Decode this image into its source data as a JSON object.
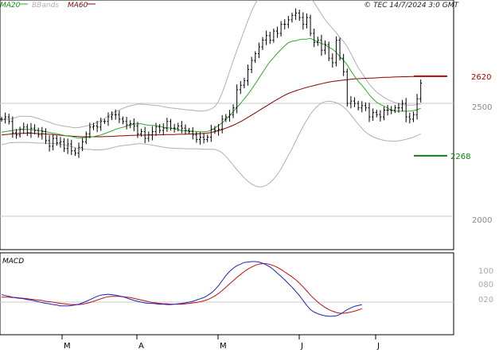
{
  "header": {
    "legend_ma20": "MA20",
    "legend_bbands": "BBands",
    "legend_ma60": "MA60",
    "copyright": "© TEC 14/7/2024 3:0 GMT"
  },
  "macd_panel": {
    "title": "MACD"
  },
  "colors": {
    "ma20": "#2eaa2e",
    "bbands": "#b0b0b0",
    "ma60": "#8b0000",
    "price_bar": "#000000",
    "macd_line": "#2020c0",
    "signal_line": "#c01010",
    "resistance": "#c00000",
    "support": "#108010",
    "grid": "#c8c8c8"
  },
  "chart_data": [
    {
      "type": "line",
      "panel": "price",
      "chart": "OHLC bars with Bollinger Bands, MA20, MA60",
      "y_tick_labels": [
        "2500",
        "2000"
      ],
      "ylim": [
        1650,
        3000
      ],
      "x_tick_labels": [
        "M",
        "A",
        "M",
        "J",
        "J"
      ],
      "x_tick_dates": [
        "2024-03",
        "2024-04",
        "2024-05",
        "2024-06",
        "2024-07"
      ],
      "annotations": [
        {
          "label": "2620",
          "value": 2620,
          "kind": "resistance",
          "color": "#c00000"
        },
        {
          "label": "2268",
          "value": 2268,
          "kind": "support",
          "color": "#108010"
        }
      ],
      "close": [
        2430,
        2440,
        2420,
        2370,
        2360,
        2385,
        2395,
        2370,
        2390,
        2380,
        2360,
        2375,
        2335,
        2310,
        2345,
        2325,
        2330,
        2300,
        2320,
        2290,
        2280,
        2305,
        2330,
        2365,
        2395,
        2400,
        2395,
        2420,
        2420,
        2440,
        2450,
        2450,
        2430,
        2420,
        2405,
        2410,
        2400,
        2365,
        2375,
        2345,
        2360,
        2375,
        2395,
        2380,
        2390,
        2420,
        2390,
        2390,
        2400,
        2390,
        2380,
        2375,
        2360,
        2340,
        2350,
        2340,
        2350,
        2385,
        2380,
        2385,
        2430,
        2440,
        2450,
        2480,
        2560,
        2580,
        2600,
        2650,
        2690,
        2720,
        2750,
        2780,
        2800,
        2780,
        2820,
        2810,
        2850,
        2850,
        2870,
        2890,
        2900,
        2880,
        2850,
        2880,
        2810,
        2770,
        2780,
        2735,
        2760,
        2700,
        2680,
        2780,
        2700,
        2640,
        2500,
        2510,
        2500,
        2480,
        2490,
        2480,
        2440,
        2460,
        2450,
        2440,
        2470,
        2470,
        2470,
        2480,
        2480,
        2500,
        2440,
        2430,
        2450,
        2520,
        2590
      ],
      "series": [
        {
          "name": "MA20",
          "values": [
            2372,
            2375,
            2377,
            2380,
            2382,
            2384,
            2385,
            2385,
            2384,
            2382,
            2380,
            2378,
            2375,
            2371,
            2368,
            2366,
            2362,
            2358,
            2355,
            2353,
            2349,
            2346,
            2348,
            2349,
            2350,
            2353,
            2356,
            2360,
            2366,
            2372,
            2378,
            2385,
            2390,
            2394,
            2399,
            2404,
            2408,
            2410,
            2409,
            2406,
            2403,
            2402,
            2401,
            2399,
            2394,
            2392,
            2390,
            2387,
            2383,
            2380,
            2378,
            2377,
            2377,
            2375,
            2374,
            2374,
            2376,
            2381,
            2391,
            2402,
            2414,
            2429,
            2445,
            2464,
            2482,
            2500,
            2520,
            2540,
            2563,
            2587,
            2612,
            2637,
            2662,
            2685,
            2703,
            2722,
            2739,
            2755,
            2769,
            2775,
            2777,
            2782,
            2784,
            2784,
            2788,
            2780,
            2772,
            2765,
            2760,
            2748,
            2740,
            2726,
            2707,
            2690,
            2670,
            2644,
            2620,
            2598,
            2580,
            2560,
            2538,
            2520,
            2505,
            2495,
            2488,
            2479,
            2470,
            2466,
            2465,
            2465,
            2465,
            2466,
            2468,
            2472,
            2478
          ]
        },
        {
          "name": "MA60",
          "values": [
            2360,
            2362,
            2363,
            2365,
            2366,
            2367,
            2367,
            2368,
            2368,
            2367,
            2366,
            2366,
            2364,
            2363,
            2362,
            2360,
            2359,
            2357,
            2356,
            2355,
            2354,
            2353,
            2352,
            2352,
            2352,
            2352,
            2352,
            2352,
            2353,
            2353,
            2354,
            2355,
            2356,
            2356,
            2357,
            2358,
            2358,
            2359,
            2359,
            2359,
            2360,
            2360,
            2360,
            2361,
            2361,
            2362,
            2362,
            2362,
            2363,
            2363,
            2363,
            2364,
            2365,
            2365,
            2366,
            2367,
            2368,
            2371,
            2375,
            2379,
            2384,
            2390,
            2396,
            2403,
            2411,
            2419,
            2428,
            2438,
            2448,
            2458,
            2468,
            2478,
            2488,
            2498,
            2508,
            2518,
            2527,
            2536,
            2544,
            2550,
            2556,
            2561,
            2566,
            2571,
            2575,
            2579,
            2583,
            2587,
            2591,
            2594,
            2597,
            2599,
            2601,
            2603,
            2605,
            2607,
            2608,
            2609,
            2610,
            2611,
            2612,
            2612,
            2613,
            2614,
            2615,
            2615,
            2616,
            2617,
            2617,
            2618,
            2618,
            2619,
            2619,
            2620,
            2620
          ]
        },
        {
          "name": "BBands upper",
          "values": [
            2426,
            2431,
            2429,
            2433,
            2438,
            2443,
            2443,
            2443,
            2442,
            2438,
            2433,
            2427,
            2422,
            2417,
            2410,
            2406,
            2402,
            2399,
            2397,
            2394,
            2392,
            2393,
            2396,
            2400,
            2403,
            2410,
            2416,
            2424,
            2433,
            2444,
            2455,
            2464,
            2470,
            2478,
            2484,
            2489,
            2493,
            2496,
            2497,
            2495,
            2494,
            2492,
            2491,
            2489,
            2485,
            2482,
            2480,
            2478,
            2476,
            2474,
            2472,
            2471,
            2469,
            2467,
            2466,
            2467,
            2469,
            2475,
            2485,
            2510,
            2547,
            2592,
            2641,
            2689,
            2735,
            2778,
            2823,
            2866,
            2908,
            2942,
            2967,
            2986,
            2997,
            3002,
            3003,
            3003,
            3004,
            3004,
            3004,
            3003,
            2999,
            2994,
            2987,
            2978,
            2966,
            2946,
            2921,
            2895,
            2870,
            2850,
            2833,
            2813,
            2792,
            2774,
            2751,
            2720,
            2689,
            2658,
            2634,
            2609,
            2585,
            2567,
            2550,
            2538,
            2527,
            2517,
            2510,
            2503,
            2498,
            2495,
            2493,
            2492,
            2492,
            2495,
            2498
          ]
        },
        {
          "name": "BBands lower",
          "values": [
            2317,
            2320,
            2325,
            2326,
            2327,
            2327,
            2327,
            2327,
            2326,
            2325,
            2324,
            2324,
            2323,
            2323,
            2322,
            2321,
            2319,
            2316,
            2313,
            2309,
            2304,
            2300,
            2298,
            2297,
            2296,
            2294,
            2294,
            2294,
            2296,
            2299,
            2303,
            2307,
            2311,
            2313,
            2315,
            2317,
            2319,
            2321,
            2321,
            2320,
            2318,
            2315,
            2312,
            2309,
            2306,
            2304,
            2302,
            2301,
            2300,
            2300,
            2299,
            2299,
            2299,
            2299,
            2298,
            2297,
            2297,
            2297,
            2296,
            2291,
            2281,
            2265,
            2246,
            2226,
            2206,
            2188,
            2170,
            2155,
            2143,
            2134,
            2130,
            2131,
            2137,
            2149,
            2165,
            2185,
            2210,
            2239,
            2270,
            2300,
            2333,
            2366,
            2398,
            2426,
            2452,
            2473,
            2489,
            2501,
            2508,
            2510,
            2508,
            2503,
            2495,
            2484,
            2469,
            2449,
            2428,
            2408,
            2389,
            2373,
            2361,
            2352,
            2345,
            2340,
            2336,
            2334,
            2333,
            2332,
            2334,
            2337,
            2341,
            2345,
            2350,
            2357,
            2365
          ]
        }
      ]
    },
    {
      "type": "line",
      "panel": "macd",
      "title": "MACD",
      "y_tick_labels": [
        "100",
        "080",
        "020"
      ],
      "series": [
        {
          "name": "MACD",
          "values": [
            18,
            16,
            14,
            12,
            10,
            9,
            8,
            6,
            5,
            3,
            1,
            -1,
            -3,
            -4,
            -6,
            -7,
            -9,
            -9,
            -9,
            -8,
            -7,
            -5,
            -2,
            2,
            6,
            10,
            14,
            17,
            18,
            19,
            18,
            17,
            15,
            13,
            10,
            7,
            4,
            2,
            0,
            -2,
            -3,
            -3,
            -4,
            -5,
            -5,
            -6,
            -6,
            -5,
            -4,
            -3,
            -2,
            0,
            2,
            5,
            8,
            11,
            16,
            22,
            30,
            40,
            52,
            64,
            74,
            82,
            88,
            92,
            96,
            97,
            98,
            98,
            97,
            94,
            90,
            85,
            78,
            70,
            62,
            54,
            45,
            36,
            26,
            16,
            4,
            -8,
            -18,
            -24,
            -28,
            -31,
            -33,
            -34,
            -34,
            -33,
            -30,
            -24,
            -18,
            -14,
            -10,
            -8,
            -6
          ]
        },
        {
          "name": "Signal",
          "values": [
            12,
            12,
            12,
            11,
            11,
            10,
            9,
            8,
            7,
            6,
            5,
            4,
            2,
            1,
            0,
            -2,
            -3,
            -4,
            -5,
            -6,
            -6,
            -6,
            -5,
            -3,
            -1,
            2,
            5,
            8,
            11,
            13,
            14,
            14,
            14,
            13,
            12,
            11,
            9,
            7,
            5,
            3,
            1,
            -1,
            -2,
            -3,
            -4,
            -4,
            -5,
            -5,
            -5,
            -5,
            -4,
            -3,
            -2,
            -1,
            1,
            3,
            6,
            10,
            15,
            21,
            28,
            36,
            44,
            52,
            60,
            67,
            74,
            80,
            85,
            89,
            92,
            93,
            93,
            91,
            88,
            84,
            79,
            73,
            67,
            61,
            54,
            46,
            37,
            27,
            17,
            8,
            0,
            -7,
            -13,
            -18,
            -22,
            -25,
            -27,
            -27,
            -26,
            -24,
            -22,
            -19,
            -16
          ]
        }
      ]
    }
  ]
}
